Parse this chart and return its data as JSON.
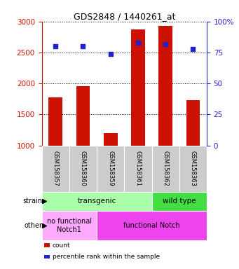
{
  "title": "GDS2848 / 1440261_at",
  "samples": [
    "GSM158357",
    "GSM158360",
    "GSM158359",
    "GSM158361",
    "GSM158362",
    "GSM158363"
  ],
  "counts": [
    1775,
    1960,
    1200,
    2870,
    2930,
    1735
  ],
  "percentiles": [
    80,
    80,
    74,
    83,
    82,
    78
  ],
  "ylim_left": [
    1000,
    3000
  ],
  "ylim_right": [
    0,
    100
  ],
  "yticks_left": [
    1000,
    1500,
    2000,
    2500,
    3000
  ],
  "yticks_right": [
    0,
    25,
    50,
    75,
    100
  ],
  "ytick_right_labels": [
    "0",
    "25",
    "50",
    "75",
    "100%"
  ],
  "bar_color": "#cc1100",
  "dot_color": "#2222cc",
  "bar_width": 0.5,
  "strain_groups": [
    {
      "label": "transgenic",
      "span": [
        0,
        3
      ],
      "color": "#aaffaa"
    },
    {
      "label": "wild type",
      "span": [
        4,
        5
      ],
      "color": "#44dd44"
    }
  ],
  "other_groups": [
    {
      "label": "no functional\nNotch1",
      "span": [
        0,
        1
      ],
      "color": "#ffaaff"
    },
    {
      "label": "functional Notch",
      "span": [
        2,
        5
      ],
      "color": "#ee44ee"
    }
  ],
  "tick_label_bg": "#cccccc",
  "legend_items": [
    {
      "color": "#cc1100",
      "label": "count"
    },
    {
      "color": "#2222cc",
      "label": "percentile rank within the sample"
    }
  ],
  "left_axis_color": "#cc1100",
  "right_axis_color": "#2222cc",
  "bg_color": "#ffffff"
}
